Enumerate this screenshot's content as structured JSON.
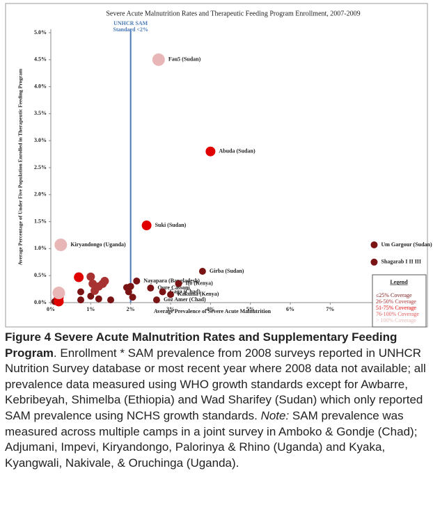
{
  "chart_data": {
    "type": "scatter",
    "title": "Severe Acute Malnutrition Rates and Therapeutic Feeding Program Enrollment, 2007-2009",
    "x_label": "Average Prevalence of Severe Acute Malnutrition",
    "y_label": "Average Percentage of Under Five Population Enrolled in Therapeutic Feeding Program",
    "xlim": [
      0,
      9.4
    ],
    "ylim": [
      0,
      5
    ],
    "xticks": [
      {
        "value": 0,
        "label": "0%"
      },
      {
        "value": 1,
        "label": "1%"
      },
      {
        "value": 2,
        "label": "2%"
      },
      {
        "value": 3,
        "label": "3%"
      },
      {
        "value": 4,
        "label": "4%"
      },
      {
        "value": 5,
        "label": "5%"
      },
      {
        "value": 6,
        "label": "6%"
      },
      {
        "value": 7,
        "label": "7%"
      }
    ],
    "yticks": [
      {
        "value": 0,
        "label": "0.0%"
      },
      {
        "value": 0.5,
        "label": "0.5%"
      },
      {
        "value": 1,
        "label": "1.0%"
      },
      {
        "value": 1.5,
        "label": "1.5%"
      },
      {
        "value": 2,
        "label": "2.0%"
      },
      {
        "value": 2.5,
        "label": "2.5%"
      },
      {
        "value": 3,
        "label": "3.0%"
      },
      {
        "value": 3.5,
        "label": "3.5%"
      },
      {
        "value": 4,
        "label": "4.0%"
      },
      {
        "value": 4.5,
        "label": "4.5%"
      },
      {
        "value": 5,
        "label": "5.0%"
      }
    ],
    "grid": false,
    "legend_title": "Legend",
    "reference_line": {
      "x": 2,
      "label_lines": [
        "UNHCR SAM",
        "Standard <2%"
      ],
      "color": "#4a7ab8"
    },
    "series": [
      {
        "name": "≤25% Coverage",
        "color": "#7a1414",
        "x": [
          8.1,
          8.1,
          3.8,
          2.15,
          3.2,
          2.5,
          2.8,
          3.0,
          2.65,
          0.75,
          0.75,
          1.0,
          1.2,
          1.5,
          1.9,
          2.0,
          1.95,
          2.05,
          0.1
        ],
        "values": [
          1.07,
          0.75,
          0.58,
          0.4,
          0.35,
          0.27,
          0.2,
          0.15,
          0.05,
          0.2,
          0.05,
          0.12,
          0.07,
          0.05,
          0.28,
          0.3,
          0.2,
          0.1,
          0.02
        ],
        "point_labels": [
          "Um Gargour (Sudan)",
          "Shagarab I II III",
          "Girba (Sudan)",
          "Nayapara (Bangladesh)",
          "Ifo (Kenya)",
          "Oure Cassoni",
          "Gaga (Chad)",
          "Kakuma (Kenya)",
          "Goz Amer (Chad)",
          null,
          null,
          null,
          null,
          null,
          null,
          null,
          null,
          null,
          null
        ]
      },
      {
        "name": "26-50% Coverage",
        "color": "#a83232",
        "x": [
          1.0,
          1.05,
          1.1,
          1.2,
          1.3,
          1.35
        ],
        "values": [
          0.48,
          0.35,
          0.22,
          0.3,
          0.35,
          0.4
        ],
        "point_labels": [
          null,
          null,
          null,
          null,
          null,
          null
        ]
      },
      {
        "name": "51-75% Coverage",
        "color": "#e00000",
        "x": [
          4.0,
          2.4,
          0.7,
          0.2,
          0.2
        ],
        "values": [
          2.8,
          1.43,
          0.47,
          0.1,
          0.02
        ],
        "point_labels": [
          "Abuda (Sudan)",
          "Suki (Sudan)",
          null,
          null,
          null
        ]
      },
      {
        "name": "76-100% Coverage",
        "color": "#e05a5a",
        "x": [],
        "values": [],
        "point_labels": []
      },
      {
        "name": "> 100% Coverage",
        "color": "#e8b6b6",
        "x": [
          2.7,
          0.25,
          0.2
        ],
        "values": [
          4.5,
          1.07,
          0.18
        ],
        "point_labels": [
          "Fau5 (Sudan)",
          "Kiryandongo (Uganda)",
          null
        ]
      }
    ]
  },
  "caption": {
    "label": "Figure 4",
    "title": "Severe Acute Malnutrition Rates and Supplementary Feeding Program",
    "text": ". Enrollment * SAM prevalence from 2008 surveys reported in UNHCR Nutrition Survey database or most recent year where 2008 data not available; all prevalence data measured using WHO growth standards except for Awbarre, Kebribeyah, Shimelba (Ethiopia) and Wad Sharifey (Sudan) which only reported SAM prevalence using NCHS growth standards. ",
    "note_label": "Note:",
    "note_text": " SAM prevalence was measured across multiple camps in a joint survey in Amboko & Gondje (Chad); Adjumani, Impevi, Kiryandongo, Palorinya & Rhino (Uganda) and Kyaka, Kyangwali, Nakivale, & Oruchinga (Uganda)."
  }
}
